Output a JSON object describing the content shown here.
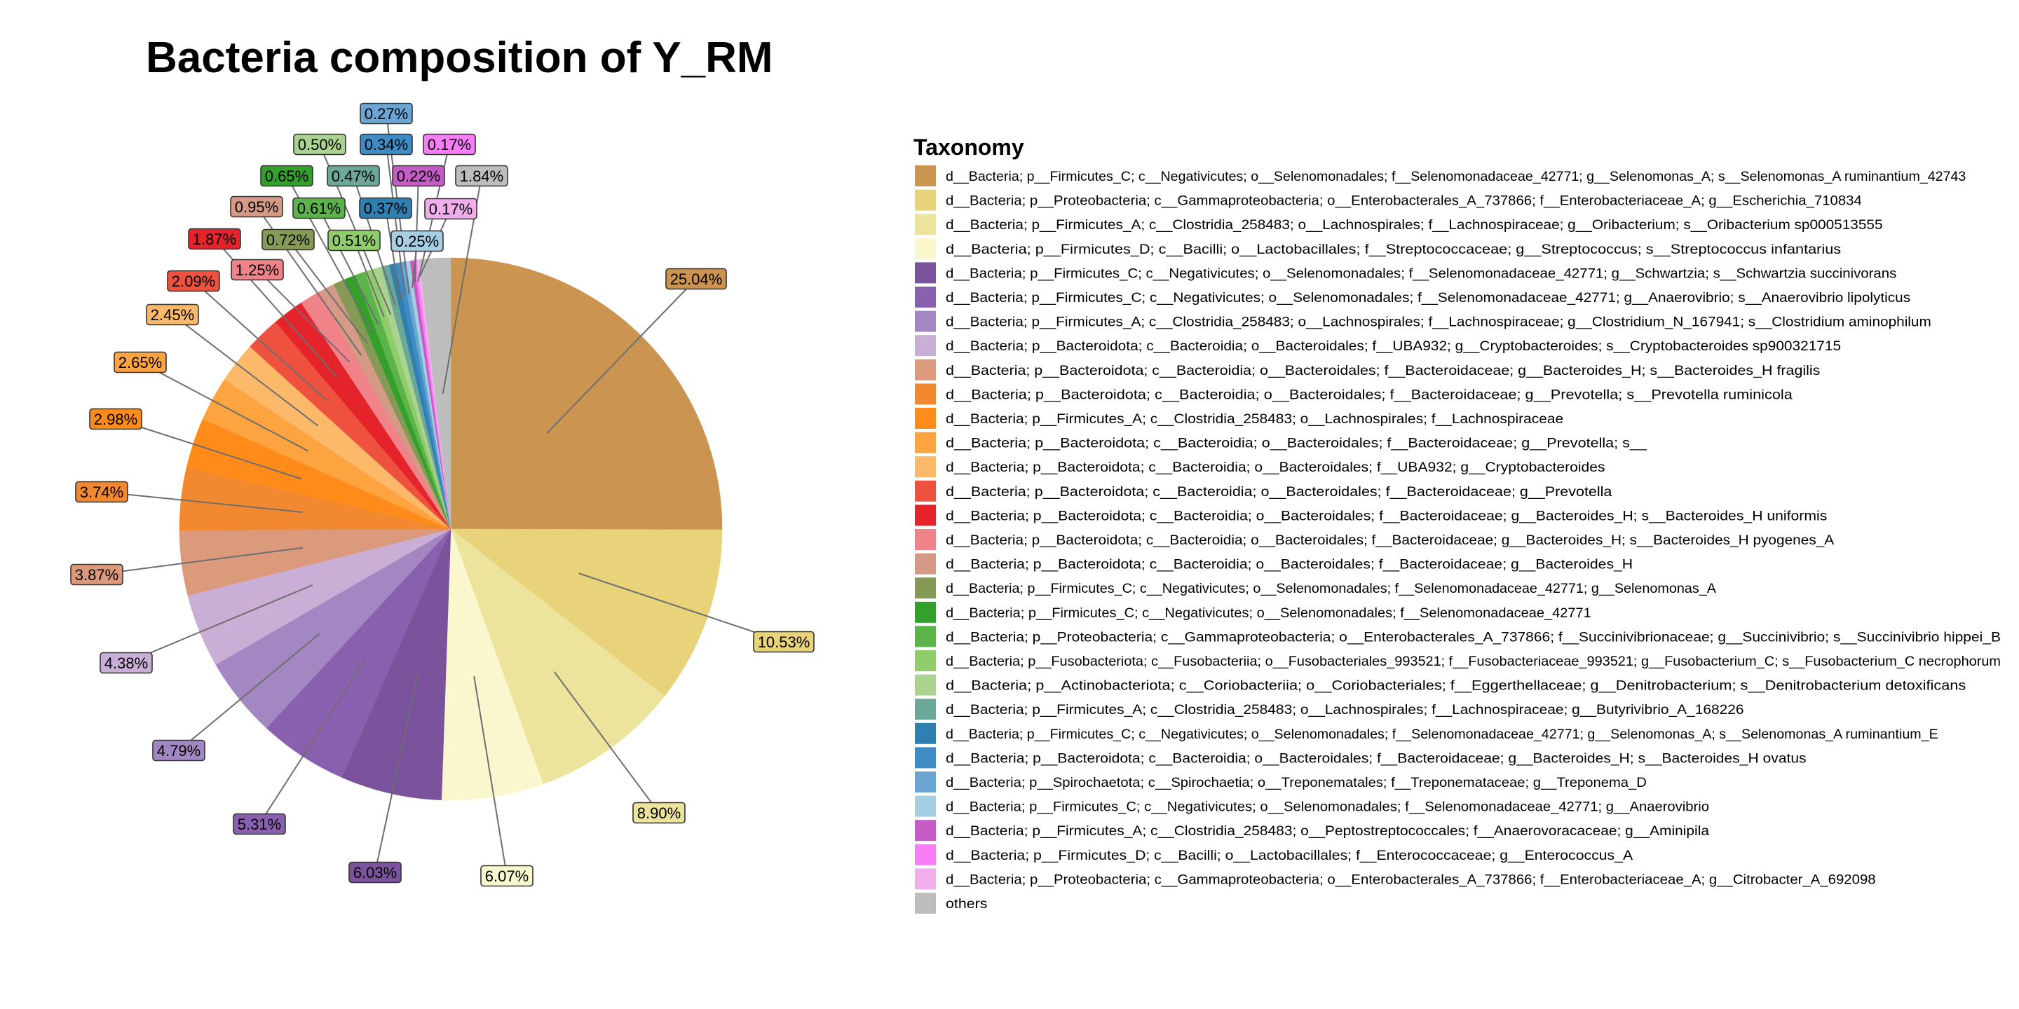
{
  "chart_data": {
    "type": "pie",
    "title": "Bacteria composition of Y_RM",
    "legend_title": "Taxonomy",
    "legend_position": "right",
    "slices": [
      {
        "value": 25.04,
        "label": "25.04%",
        "color": "#CC9451"
      },
      {
        "value": 10.53,
        "label": "10.53%",
        "color": "#E8D27A"
      },
      {
        "value": 8.9,
        "label": "8.90%",
        "color": "#ECE39C"
      },
      {
        "value": 6.07,
        "label": "6.07%",
        "color": "#FAF7CF"
      },
      {
        "value": 6.03,
        "label": "6.03%",
        "color": "#7A539C"
      },
      {
        "value": 5.31,
        "label": "5.31%",
        "color": "#8960B0"
      },
      {
        "value": 4.79,
        "label": "4.79%",
        "color": "#A387C2"
      },
      {
        "value": 4.38,
        "label": "4.38%",
        "color": "#C9AFD6"
      },
      {
        "value": 3.87,
        "label": "3.87%",
        "color": "#DC9A7C"
      },
      {
        "value": 3.74,
        "label": "3.74%",
        "color": "#F28930"
      },
      {
        "value": 2.98,
        "label": "2.98%",
        "color": "#FF8C1A"
      },
      {
        "value": 2.65,
        "label": "2.65%",
        "color": "#FDA340"
      },
      {
        "value": 2.45,
        "label": "2.45%",
        "color": "#FDB96A"
      },
      {
        "value": 2.09,
        "label": "2.09%",
        "color": "#EE513E"
      },
      {
        "value": 1.87,
        "label": "1.87%",
        "color": "#E4242A"
      },
      {
        "value": 1.25,
        "label": "1.25%",
        "color": "#F0838A"
      },
      {
        "value": 0.95,
        "label": "0.95%",
        "color": "#D49A86"
      },
      {
        "value": 0.72,
        "label": "0.72%",
        "color": "#859A56"
      },
      {
        "value": 0.65,
        "label": "0.65%",
        "color": "#34A02C"
      },
      {
        "value": 0.61,
        "label": "0.61%",
        "color": "#5BB449"
      },
      {
        "value": 0.51,
        "label": "0.51%",
        "color": "#8FCC6C"
      },
      {
        "value": 0.5,
        "label": "0.50%",
        "color": "#A9D38E"
      },
      {
        "value": 0.47,
        "label": "0.47%",
        "color": "#6BA89A"
      },
      {
        "value": 0.37,
        "label": "0.37%",
        "color": "#2F7FB0"
      },
      {
        "value": 0.34,
        "label": "0.34%",
        "color": "#3F8CC5"
      },
      {
        "value": 0.27,
        "label": "0.27%",
        "color": "#6BA5D3"
      },
      {
        "value": 0.25,
        "label": "0.25%",
        "color": "#A6CEE3"
      },
      {
        "value": 0.22,
        "label": "0.22%",
        "color": "#C55BC4"
      },
      {
        "value": 0.17,
        "label": "0.17%",
        "color": "#F97DF6"
      },
      {
        "value": 0.17,
        "label": "0.17%",
        "color": "#F0AEEA"
      },
      {
        "value": 1.84,
        "label": "1.84%",
        "color": "#BDBDBD"
      }
    ],
    "legend": [
      "d__Bacteria; p__Firmicutes_C; c__Negativicutes; o__Selenomonadales; f__Selenomonadaceae_42771; g__Selenomonas_A; s__Selenomonas_A ruminantium_42743",
      "d__Bacteria; p__Proteobacteria; c__Gammaproteobacteria; o__Enterobacterales_A_737866; f__Enterobacteriaceae_A; g__Escherichia_710834",
      "d__Bacteria; p__Firmicutes_A; c__Clostridia_258483; o__Lachnospirales; f__Lachnospiraceae; g__Oribacterium; s__Oribacterium sp000513555",
      "d__Bacteria; p__Firmicutes_D; c__Bacilli; o__Lactobacillales; f__Streptococcaceae; g__Streptococcus; s__Streptococcus infantarius",
      "d__Bacteria; p__Firmicutes_C; c__Negativicutes; o__Selenomonadales; f__Selenomonadaceae_42771; g__Schwartzia; s__Schwartzia succinivorans",
      "d__Bacteria; p__Firmicutes_C; c__Negativicutes; o__Selenomonadales; f__Selenomonadaceae_42771; g__Anaerovibrio; s__Anaerovibrio lipolyticus",
      "d__Bacteria; p__Firmicutes_A; c__Clostridia_258483; o__Lachnospirales; f__Lachnospiraceae; g__Clostridium_N_167941; s__Clostridium aminophilum",
      "d__Bacteria; p__Bacteroidota; c__Bacteroidia; o__Bacteroidales; f__UBA932; g__Cryptobacteroides; s__Cryptobacteroides sp900321715",
      "d__Bacteria; p__Bacteroidota; c__Bacteroidia; o__Bacteroidales; f__Bacteroidaceae; g__Bacteroides_H; s__Bacteroides_H fragilis",
      "d__Bacteria; p__Bacteroidota; c__Bacteroidia; o__Bacteroidales; f__Bacteroidaceae; g__Prevotella; s__Prevotella ruminicola",
      "d__Bacteria; p__Firmicutes_A; c__Clostridia_258483; o__Lachnospirales; f__Lachnospiraceae",
      "d__Bacteria; p__Bacteroidota; c__Bacteroidia; o__Bacteroidales; f__Bacteroidaceae; g__Prevotella; s__",
      "d__Bacteria; p__Bacteroidota; c__Bacteroidia; o__Bacteroidales; f__UBA932; g__Cryptobacteroides",
      "d__Bacteria; p__Bacteroidota; c__Bacteroidia; o__Bacteroidales; f__Bacteroidaceae; g__Prevotella",
      "d__Bacteria; p__Bacteroidota; c__Bacteroidia; o__Bacteroidales; f__Bacteroidaceae; g__Bacteroides_H; s__Bacteroides_H uniformis",
      "d__Bacteria; p__Bacteroidota; c__Bacteroidia; o__Bacteroidales; f__Bacteroidaceae; g__Bacteroides_H; s__Bacteroides_H pyogenes_A",
      "d__Bacteria; p__Bacteroidota; c__Bacteroidia; o__Bacteroidales; f__Bacteroidaceae; g__Bacteroides_H",
      "d__Bacteria; p__Firmicutes_C; c__Negativicutes; o__Selenomonadales; f__Selenomonadaceae_42771; g__Selenomonas_A",
      "d__Bacteria; p__Firmicutes_C; c__Negativicutes; o__Selenomonadales; f__Selenomonadaceae_42771",
      "d__Bacteria; p__Proteobacteria; c__Gammaproteobacteria; o__Enterobacterales_A_737866; f__Succinivibrionaceae; g__Succinivibrio; s__Succinivibrio hippei_B",
      "d__Bacteria; p__Fusobacteriota; c__Fusobacteriia; o__Fusobacteriales_993521; f__Fusobacteriaceae_993521; g__Fusobacterium_C; s__Fusobacterium_C necrophorum",
      "d__Bacteria; p__Actinobacteriota; c__Coriobacteriia; o__Coriobacteriales; f__Eggerthellaceae; g__Denitrobacterium; s__Denitrobacterium detoxificans",
      "d__Bacteria; p__Firmicutes_A; c__Clostridia_258483; o__Lachnospirales; f__Lachnospiraceae; g__Butyrivibrio_A_168226",
      "d__Bacteria; p__Firmicutes_C; c__Negativicutes; o__Selenomonadales; f__Selenomonadaceae_42771; g__Selenomonas_A; s__Selenomonas_A ruminantium_E",
      "d__Bacteria; p__Bacteroidota; c__Bacteroidia; o__Bacteroidales; f__Bacteroidaceae; g__Bacteroides_H; s__Bacteroides_H ovatus",
      "d__Bacteria; p__Spirochaetota; c__Spirochaetia; o__Treponematales; f__Treponemataceae; g__Treponema_D",
      "d__Bacteria; p__Firmicutes_C; c__Negativicutes; o__Selenomonadales; f__Selenomonadaceae_42771; g__Anaerovibrio",
      "d__Bacteria; p__Firmicutes_A; c__Clostridia_258483; o__Peptostreptococcales; f__Anaerovoracaceae; g__Aminipila",
      "d__Bacteria; p__Firmicutes_D; c__Bacilli; o__Lactobacillales; f__Enterococcaceae; g__Enterococcus_A",
      "d__Bacteria; p__Proteobacteria; c__Gammaproteobacteria; o__Enterobacterales_A_737866; f__Enterobacteriaceae_A; g__Citrobacter_A_692098",
      "others"
    ]
  }
}
